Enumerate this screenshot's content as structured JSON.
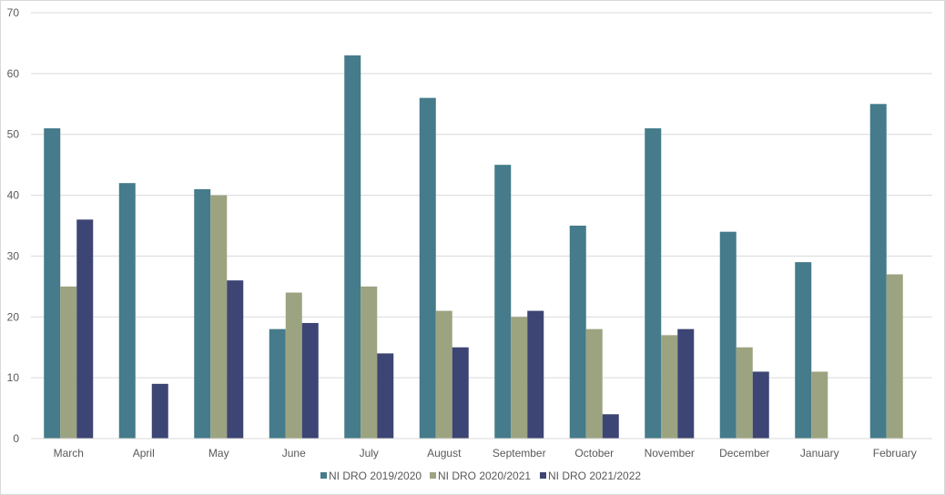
{
  "chart_data": {
    "type": "bar",
    "title": "",
    "xlabel": "",
    "ylabel": "",
    "ylim": [
      0,
      70
    ],
    "yticks": [
      0,
      10,
      20,
      30,
      40,
      50,
      60,
      70
    ],
    "grid": true,
    "legend_position": "bottom",
    "categories": [
      "March",
      "April",
      "May",
      "June",
      "July",
      "August",
      "September",
      "October",
      "November",
      "December",
      "January",
      "February"
    ],
    "series": [
      {
        "name": "NI DRO 2019/2020",
        "color": "#457b8a",
        "values": [
          51,
          42,
          41,
          18,
          63,
          56,
          45,
          35,
          51,
          34,
          29,
          55
        ]
      },
      {
        "name": "NI DRO 2020/2021",
        "color": "#9ca380",
        "values": [
          25,
          0,
          40,
          24,
          25,
          21,
          20,
          18,
          17,
          15,
          11,
          27
        ]
      },
      {
        "name": "NI DRO 2021/2022",
        "color": "#3c4573",
        "values": [
          36,
          9,
          26,
          19,
          14,
          15,
          21,
          4,
          18,
          11,
          null,
          null
        ]
      }
    ]
  }
}
